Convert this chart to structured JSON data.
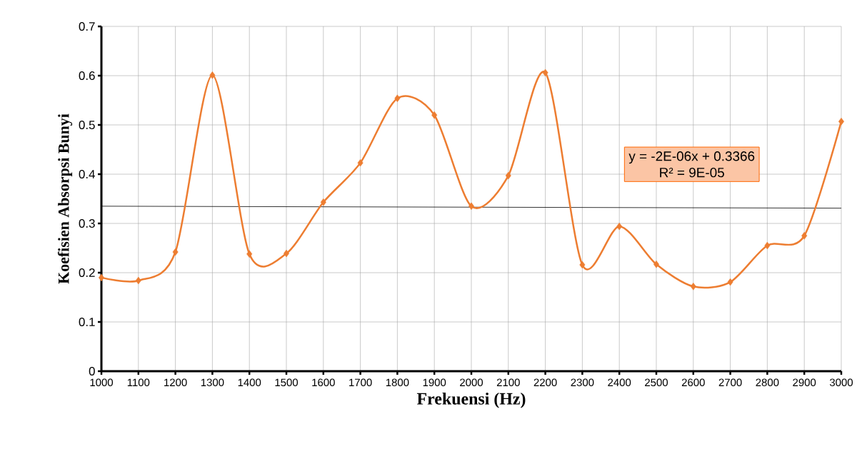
{
  "chart_data": {
    "type": "line",
    "xlabel": "Frekuensi (Hz)",
    "ylabel": "Koefisien Absorpsi Bunyi",
    "x": [
      1000,
      1100,
      1200,
      1300,
      1400,
      1500,
      1600,
      1700,
      1800,
      1900,
      2000,
      2100,
      2200,
      2300,
      2400,
      2500,
      2600,
      2700,
      2800,
      2900,
      3000
    ],
    "xlim": [
      1000,
      3000
    ],
    "xticks": [
      1000,
      1100,
      1200,
      1300,
      1400,
      1500,
      1600,
      1700,
      1800,
      1900,
      2000,
      2100,
      2200,
      2300,
      2400,
      2500,
      2600,
      2700,
      2800,
      2900,
      3000
    ],
    "ylim": [
      0,
      0.7
    ],
    "yticks": [
      0,
      0.1,
      0.2,
      0.3,
      0.4,
      0.5,
      0.6,
      0.7
    ],
    "grid": true,
    "marker": "diamond",
    "series": [
      {
        "color": "#ed7d31",
        "values": [
          0.19,
          0.184,
          0.242,
          0.601,
          0.238,
          0.239,
          0.343,
          0.423,
          0.554,
          0.52,
          0.335,
          0.397,
          0.606,
          0.216,
          0.294,
          0.217,
          0.172,
          0.181,
          0.255,
          0.275,
          0.507
        ]
      },
      {
        "type": "line",
        "color": "#000000",
        "marker": "none",
        "x": [
          1000,
          3000
        ],
        "values": [
          0.335,
          0.331
        ]
      }
    ],
    "annotations": [
      "y = -2E-06x + 0.3366",
      "R² = 9E-05"
    ]
  }
}
